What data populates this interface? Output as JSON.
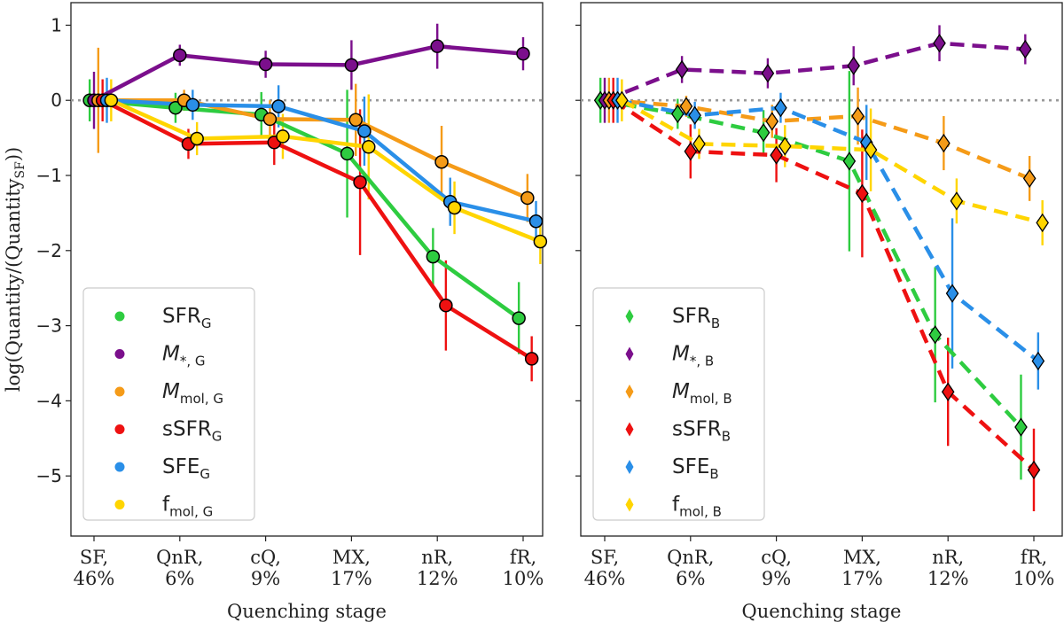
{
  "chart_data": [
    {
      "type": "line",
      "panel": "left",
      "title": "",
      "xlabel": "Quenching stage",
      "ylabel": "log(Quantity/(Quantity_SF))",
      "ylabel_main": "log(Quantity/(Quantity",
      "ylabel_sub": "SF",
      "ylabel_end": "))",
      "ylim": [
        -5.8,
        1.3
      ],
      "yticks": [
        1,
        0,
        -1,
        -2,
        -3,
        -4,
        -5
      ],
      "ytick_labels": [
        "1",
        "0",
        "−1",
        "−2",
        "−3",
        "−4",
        "−5"
      ],
      "categories": [
        "SF, 46%",
        "QnR, 6%",
        "cQ, 9%",
        "MX, 17%",
        "nR, 12%",
        "fR, 10%"
      ],
      "category_lines": [
        [
          "SF,",
          "46%"
        ],
        [
          "QnR,",
          "6%"
        ],
        [
          "cQ,",
          "9%"
        ],
        [
          "MX,",
          "17%"
        ],
        [
          "nR,",
          "12%"
        ],
        [
          "fR,",
          "10%"
        ]
      ],
      "reference_line": 0,
      "marker": "circle",
      "linestyle": "solid",
      "legend_position": "lower-left",
      "series": [
        {
          "name": "SFR_G",
          "label": "SFR",
          "sub": "G",
          "italic": false,
          "color": "#2ecc40",
          "x": [
            -0.05,
            0.95,
            1.95,
            2.95,
            3.95,
            4.95
          ],
          "values": [
            0.0,
            -0.1,
            -0.19,
            -0.71,
            -2.08,
            -2.9
          ],
          "err": [
            0.28,
            0.2,
            0.3,
            0.85,
            0.38,
            0.48
          ]
        },
        {
          "name": "M*,G",
          "label": "M",
          "sub": "*, G",
          "italic": true,
          "color": "#7b0f8c",
          "x": [
            0.0,
            1.0,
            2.0,
            3.0,
            4.0,
            5.0
          ],
          "values": [
            0.0,
            0.6,
            0.48,
            0.47,
            0.72,
            0.62
          ],
          "err": [
            0.38,
            0.14,
            0.18,
            0.33,
            0.3,
            0.22
          ]
        },
        {
          "name": "Mmol,G",
          "label": "M",
          "sub": "mol, G",
          "italic": true,
          "color": "#f59b18",
          "x": [
            0.05,
            1.05,
            2.05,
            3.05,
            4.05,
            5.05
          ],
          "values": [
            0.0,
            0.0,
            -0.25,
            -0.26,
            -0.82,
            -1.3
          ],
          "err": [
            0.7,
            0.14,
            0.25,
            0.48,
            0.48,
            0.32
          ]
        },
        {
          "name": "sSFR_G",
          "label": "sSFR",
          "sub": "G",
          "italic": false,
          "color": "#ee1111",
          "x": [
            0.1,
            1.1,
            2.1,
            3.1,
            4.1,
            5.1
          ],
          "values": [
            0.0,
            -0.58,
            -0.56,
            -1.09,
            -2.73,
            -3.44
          ],
          "err": [
            0.28,
            0.2,
            0.3,
            0.97,
            0.6,
            0.3
          ]
        },
        {
          "name": "SFE_G",
          "label": "SFE",
          "sub": "G",
          "italic": false,
          "color": "#2a8fe8",
          "x": [
            0.15,
            1.15,
            2.15,
            3.15,
            4.15,
            5.15
          ],
          "values": [
            0.0,
            -0.06,
            -0.08,
            -0.41,
            -1.35,
            -1.61
          ],
          "err": [
            0.3,
            0.2,
            0.28,
            0.46,
            0.32,
            0.27
          ]
        },
        {
          "name": "fmol_G",
          "label": "f",
          "sub": "mol, G",
          "italic": false,
          "color": "#ffd500",
          "x": [
            0.2,
            1.2,
            2.2,
            3.2,
            4.2,
            5.2
          ],
          "values": [
            0.0,
            -0.51,
            -0.48,
            -0.62,
            -1.43,
            -1.88
          ],
          "err": [
            0.28,
            0.22,
            0.3,
            0.7,
            0.35,
            0.3
          ]
        }
      ]
    },
    {
      "type": "line",
      "panel": "right",
      "title": "",
      "xlabel": "Quenching stage",
      "ylabel": "",
      "ylim": [
        -5.8,
        1.3
      ],
      "yticks": [
        1,
        0,
        -1,
        -2,
        -3,
        -4,
        -5
      ],
      "categories": [
        "SF, 46%",
        "QnR, 6%",
        "cQ, 9%",
        "MX, 17%",
        "nR, 12%",
        "fR, 10%"
      ],
      "category_lines": [
        [
          "SF,",
          "46%"
        ],
        [
          "QnR,",
          "6%"
        ],
        [
          "cQ,",
          "9%"
        ],
        [
          "MX,",
          "17%"
        ],
        [
          "nR,",
          "12%"
        ],
        [
          "fR,",
          "10%"
        ]
      ],
      "reference_line": 0,
      "marker": "diamond",
      "linestyle": "dashed",
      "legend_position": "lower-left",
      "series": [
        {
          "name": "SFR_B",
          "label": "SFR",
          "sub": "B",
          "italic": false,
          "color": "#2ecc40",
          "x": [
            -0.05,
            0.85,
            1.85,
            2.85,
            3.85,
            4.85
          ],
          "values": [
            0.0,
            -0.18,
            -0.43,
            -0.81,
            -3.12,
            -4.35
          ],
          "err": [
            0.3,
            0.2,
            0.3,
            1.2,
            0.9,
            0.7
          ]
        },
        {
          "name": "M*,B",
          "label": "M",
          "sub": "*, B",
          "italic": true,
          "color": "#7b0f8c",
          "x": [
            0.0,
            0.9,
            1.9,
            2.9,
            3.9,
            4.9
          ],
          "values": [
            0.0,
            0.41,
            0.36,
            0.46,
            0.76,
            0.68
          ],
          "err": [
            0.3,
            0.18,
            0.2,
            0.26,
            0.24,
            0.2
          ]
        },
        {
          "name": "Mmol,B",
          "label": "M",
          "sub": "mol, B",
          "italic": true,
          "color": "#f59b18",
          "x": [
            0.05,
            0.95,
            1.95,
            2.95,
            3.95,
            4.95
          ],
          "values": [
            0.0,
            -0.08,
            -0.28,
            -0.21,
            -0.57,
            -1.04
          ],
          "err": [
            0.3,
            0.14,
            0.22,
            0.38,
            0.36,
            0.3
          ]
        },
        {
          "name": "sSFR_B",
          "label": "sSFR",
          "sub": "B",
          "italic": false,
          "color": "#ee1111",
          "x": [
            0.1,
            1.0,
            2.0,
            3.0,
            4.0,
            5.0
          ],
          "values": [
            0.0,
            -0.68,
            -0.73,
            -1.24,
            -3.88,
            -4.92
          ],
          "err": [
            0.3,
            0.36,
            0.36,
            0.85,
            0.72,
            0.55
          ]
        },
        {
          "name": "SFE_B",
          "label": "SFE",
          "sub": "B",
          "italic": false,
          "color": "#2a8fe8",
          "x": [
            0.15,
            1.05,
            2.05,
            3.05,
            4.05,
            5.05
          ],
          "values": [
            0.0,
            -0.2,
            -0.1,
            -0.56,
            -2.57,
            -3.47
          ],
          "err": [
            0.3,
            0.18,
            0.2,
            0.5,
            1.0,
            0.38
          ]
        },
        {
          "name": "fmol_B",
          "label": "f",
          "sub": "mol, B",
          "italic": false,
          "color": "#ffd500",
          "x": [
            0.2,
            1.1,
            2.1,
            3.1,
            4.1,
            5.1
          ],
          "values": [
            0.0,
            -0.58,
            -0.61,
            -0.66,
            -1.34,
            -1.63
          ],
          "err": [
            0.28,
            0.2,
            0.28,
            0.55,
            0.3,
            0.3
          ]
        }
      ]
    }
  ]
}
